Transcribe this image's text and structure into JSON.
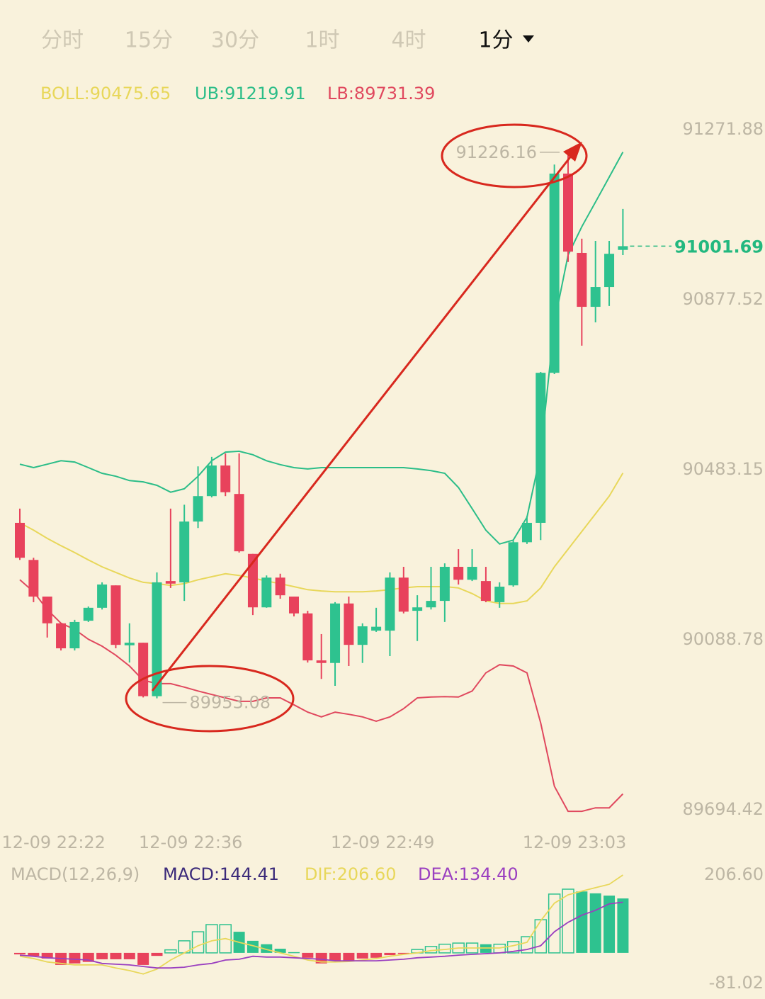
{
  "tabs": [
    "分时",
    "15分",
    "30分",
    "1时",
    "4时",
    "1分"
  ],
  "selected_tab": 5,
  "chart_data": [
    {
      "type": "candlestick",
      "x": [
        null,
        null,
        "12-09 22:22",
        null,
        null,
        null,
        null,
        null,
        null,
        null,
        null,
        null,
        "12-09 22:36",
        null,
        null,
        null,
        null,
        null,
        null,
        null,
        null,
        null,
        null,
        null,
        null,
        null,
        "12-09 22:49",
        null,
        null,
        null,
        null,
        null,
        null,
        null,
        null,
        null,
        null,
        null,
        null,
        null,
        "12-09 23:03",
        null,
        null,
        null,
        null
      ],
      "open": [
        90360,
        90274,
        90189,
        90127,
        90069,
        90133,
        90163,
        90215,
        90076,
        90082,
        89958,
        90225,
        90222,
        90363,
        90422,
        90493,
        90427,
        90288,
        90164,
        90233,
        90189,
        90150,
        90041,
        90035,
        90173,
        90077,
        90110,
        90110,
        90233,
        90156,
        90164,
        90179,
        90258,
        90228,
        90225,
        90176,
        90215,
        90315,
        90360,
        90708,
        91170,
        90986,
        90861,
        90907,
        90993
      ],
      "high": [
        90393,
        90279,
        90189,
        90127,
        90135,
        90166,
        90222,
        90215,
        90127,
        90082,
        90245,
        90393,
        90402,
        90491,
        90513,
        90521,
        90521,
        90288,
        90238,
        90242,
        90189,
        90156,
        90102,
        90176,
        90189,
        90127,
        90163,
        90245,
        90258,
        90192,
        90258,
        90266,
        90299,
        90299,
        90258,
        90222,
        90320,
        90376,
        90710,
        91191,
        91226.16,
        91019,
        91014,
        91014,
        91088
      ],
      "low": [
        90274,
        90176,
        90094,
        90064,
        90064,
        90130,
        90159,
        90069,
        90036,
        89955,
        89953.08,
        90209,
        90179,
        90348,
        90419,
        90422,
        90291,
        90146,
        90163,
        90184,
        90143,
        90036,
        89998,
        89982,
        90028,
        90035,
        90107,
        90051,
        90150,
        90086,
        90159,
        90130,
        90217,
        90225,
        90176,
        90163,
        90212,
        90311,
        90320,
        90705,
        90965,
        90771,
        90825,
        90863,
        90981
      ],
      "close": [
        90279,
        90189,
        90127,
        90069,
        90130,
        90163,
        90217,
        90077,
        90082,
        89958,
        90222,
        90219,
        90363,
        90422,
        90493,
        90431,
        90294,
        90164,
        90233,
        90192,
        90150,
        90041,
        90035,
        90173,
        90077,
        90120,
        90119,
        90233,
        90154,
        90164,
        90179,
        90258,
        90228,
        90258,
        90179,
        90212,
        90315,
        90360,
        90708,
        91170,
        90989,
        90861,
        90907,
        90984,
        91001.69
      ],
      "up_color": "#2ec28f",
      "down_color": "#e8425c",
      "series": [
        {
          "name": "BOLL:90475.65",
          "color": "#e8d75a",
          "values": [
            90360,
            90343,
            90324,
            90307,
            90291,
            90274,
            90258,
            90245,
            90232,
            90222,
            90219,
            90215,
            90219,
            90228,
            90235,
            90242,
            90238,
            90232,
            90225,
            90219,
            90212,
            90205,
            90202,
            90200,
            90200,
            90200,
            90202,
            90205,
            90209,
            90212,
            90212,
            90212,
            90209,
            90196,
            90179,
            90173,
            90173,
            90179,
            90209,
            90258,
            90299,
            90340,
            90381,
            90422,
            90475.65
          ]
        },
        {
          "name": "UB:91219.91",
          "color": "#2bbd88",
          "values": [
            90496,
            90488,
            90496,
            90504,
            90501,
            90488,
            90475,
            90468,
            90458,
            90455,
            90447,
            90431,
            90439,
            90468,
            90504,
            90524,
            90526,
            90518,
            90504,
            90495,
            90488,
            90485,
            90488,
            90488,
            90488,
            90488,
            90488,
            90488,
            90488,
            90485,
            90481,
            90475,
            90442,
            90393,
            90343,
            90311,
            90320,
            90373,
            90521,
            90825,
            90981,
            91047,
            91104,
            91162,
            91219.91
          ]
        },
        {
          "name": "LB:89731.39",
          "color": "#e0485e",
          "values": [
            90228,
            90200,
            90159,
            90127,
            90113,
            90090,
            90074,
            90053,
            90028,
            89995,
            89987,
            89987,
            89979,
            89970,
            89962,
            89954,
            89946,
            89946,
            89954,
            89954,
            89938,
            89921,
            89910,
            89921,
            89916,
            89910,
            89900,
            89910,
            89929,
            89954,
            89956,
            89957,
            89956,
            89970,
            90012,
            90031,
            90028,
            90012,
            89896,
            89749,
            89691,
            89691,
            89699,
            89699,
            89731.39
          ]
        }
      ],
      "ylim": [
        89694.42,
        91271.88
      ],
      "yticks": [
        91271.88,
        90877.52,
        90483.15,
        90088.78,
        89694.42
      ],
      "last_price_color": "#22b87f"
    },
    {
      "type": "macd",
      "title": "MACD(12,26,9)",
      "up_color": "#2ec28f",
      "down_color": "#e8425c",
      "series": [
        {
          "name": "MACD:144.41",
          "color": "#3b2a7a",
          "values": [
            -4,
            -8,
            -15,
            -32,
            -28,
            -24,
            -17,
            -17,
            -17,
            -32,
            -8,
            8,
            32,
            56,
            75,
            75,
            56,
            32,
            23,
            11,
            2,
            -13,
            -28,
            -21,
            -21,
            -15,
            -13,
            -6,
            -1,
            9,
            17,
            23,
            26,
            26,
            23,
            23,
            30,
            43,
            88,
            156,
            169,
            163,
            158,
            152,
            144.41
          ]
        },
        {
          "name": "DIF:206.60",
          "color": "#e8d75a",
          "values": [
            -9,
            -15,
            -24,
            -28,
            -32,
            -32,
            -32,
            -40,
            -47,
            -56,
            -43,
            -19,
            0,
            19,
            32,
            38,
            28,
            19,
            9,
            0,
            -9,
            -19,
            -24,
            -24,
            -23,
            -19,
            -15,
            -9,
            -4,
            0,
            6,
            9,
            13,
            13,
            13,
            13,
            19,
            28,
            85,
            132,
            154,
            164,
            173,
            182,
            206.6
          ]
        },
        {
          "name": "DEA:134.40",
          "color": "#9a3fc0",
          "values": [
            -6,
            -9,
            -13,
            -15,
            -17,
            -19,
            -28,
            -30,
            -32,
            -36,
            -40,
            -40,
            -38,
            -32,
            -28,
            -19,
            -17,
            -9,
            -11,
            -11,
            -13,
            -15,
            -17,
            -21,
            -21,
            -21,
            -21,
            -19,
            -17,
            -13,
            -11,
            -9,
            -6,
            -4,
            -2,
            0,
            4,
            9,
            19,
            56,
            81,
            100,
            113,
            130,
            134.4
          ]
        }
      ],
      "ylim": [
        -81.02,
        206.6
      ],
      "yticks": [
        {
          "value": 206.6,
          "label": "206.60"
        },
        -81.02
      ]
    }
  ]
}
